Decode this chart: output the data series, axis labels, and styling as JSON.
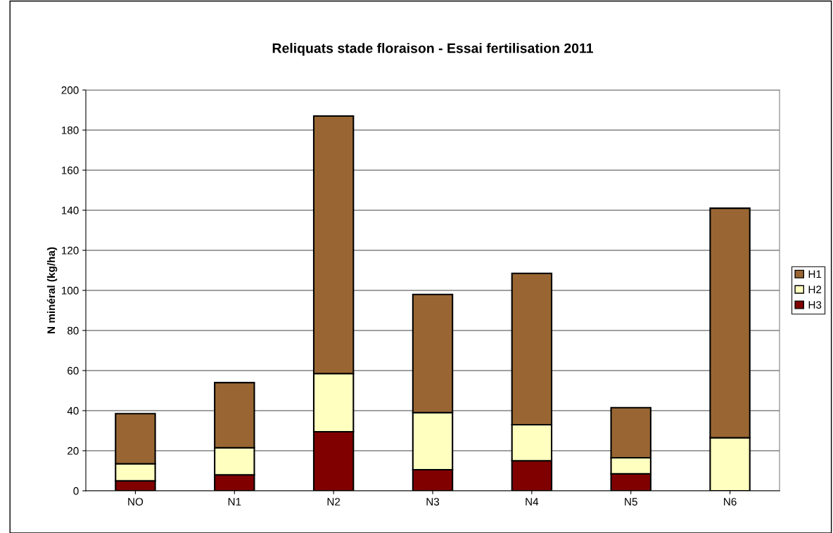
{
  "chart_data": {
    "type": "bar",
    "stacked": true,
    "title": "Reliquats stade floraison - Essai fertilisation 2011",
    "ylabel": "N minéral (kg/ha)",
    "categories": [
      "NO",
      "N1",
      "N2",
      "N3",
      "N4",
      "N5",
      "N6"
    ],
    "series": [
      {
        "name": "H3",
        "color": "#800000",
        "values": [
          5,
          8,
          29.5,
          10.5,
          15,
          8.5,
          0
        ]
      },
      {
        "name": "H2",
        "color": "#ffffc0",
        "values": [
          8.5,
          13.5,
          29,
          28.5,
          18,
          8,
          26.5
        ]
      },
      {
        "name": "H1",
        "color": "#996633",
        "values": [
          25,
          32.5,
          128.5,
          59,
          75.5,
          25,
          114.5
        ]
      }
    ],
    "ylim": [
      0,
      200
    ],
    "yticks": [
      0,
      20,
      40,
      60,
      80,
      100,
      120,
      140,
      160,
      180,
      200
    ],
    "grid": "y",
    "legend": "right"
  }
}
